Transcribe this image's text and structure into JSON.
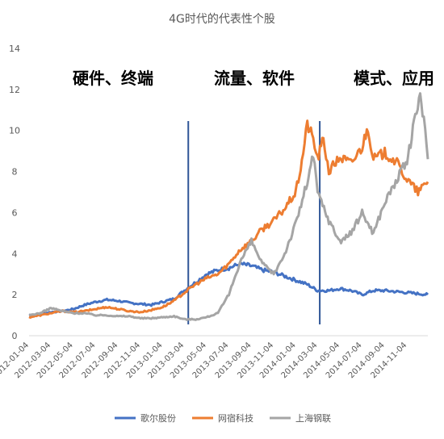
{
  "chart_data": {
    "type": "line",
    "title": "4G时代的代表性个股",
    "ylim": [
      0,
      14
    ],
    "yticks": [
      0,
      2,
      4,
      6,
      8,
      10,
      12,
      14
    ],
    "xlim": [
      "2012-01-04",
      "2014-12-31"
    ],
    "x_tick_labels": [
      "2012-01-04",
      "2012-03-04",
      "2012-05-04",
      "2012-07-04",
      "2012-09-04",
      "2012-11-04",
      "2013-01-04",
      "2013-03-04",
      "2013-05-04",
      "2013-07-04",
      "2013-09-04",
      "2013-11-04",
      "2014-01-04",
      "2014-03-04",
      "2014-05-04",
      "2014-07-04",
      "2014-09-04",
      "2014-11-04"
    ],
    "grid": false,
    "legend_position": "bottom",
    "phase_labels": [
      "硬件、终端",
      "流量、软件",
      "模式、应用"
    ],
    "phase_dividers": [
      "2013-03-15",
      "2014-03-10"
    ],
    "series": [
      {
        "name": "歌尔股份",
        "color": "#4472C4",
        "points": [
          [
            "2012-01-04",
            1.0
          ],
          [
            "2012-02-04",
            1.05
          ],
          [
            "2012-03-04",
            1.15
          ],
          [
            "2012-04-04",
            1.2
          ],
          [
            "2012-05-04",
            1.3
          ],
          [
            "2012-06-04",
            1.5
          ],
          [
            "2012-07-04",
            1.65
          ],
          [
            "2012-08-04",
            1.75
          ],
          [
            "2012-09-04",
            1.7
          ],
          [
            "2012-10-04",
            1.6
          ],
          [
            "2012-11-04",
            1.55
          ],
          [
            "2012-12-04",
            1.5
          ],
          [
            "2013-01-04",
            1.65
          ],
          [
            "2013-02-04",
            1.8
          ],
          [
            "2013-03-04",
            2.2
          ],
          [
            "2013-04-04",
            2.6
          ],
          [
            "2013-05-04",
            3.0
          ],
          [
            "2013-06-04",
            3.2
          ],
          [
            "2013-07-04",
            3.3
          ],
          [
            "2013-08-04",
            3.5
          ],
          [
            "2013-09-04",
            3.4
          ],
          [
            "2013-10-04",
            3.2
          ],
          [
            "2013-11-04",
            3.1
          ],
          [
            "2013-12-04",
            2.9
          ],
          [
            "2014-01-04",
            2.7
          ],
          [
            "2014-02-04",
            2.5
          ],
          [
            "2014-03-04",
            2.2
          ],
          [
            "2014-04-04",
            2.2
          ],
          [
            "2014-05-04",
            2.3
          ],
          [
            "2014-06-04",
            2.2
          ],
          [
            "2014-07-04",
            2.0
          ],
          [
            "2014-08-04",
            2.2
          ],
          [
            "2014-09-04",
            2.2
          ],
          [
            "2014-10-04",
            2.15
          ],
          [
            "2014-11-04",
            2.1
          ],
          [
            "2014-12-31",
            2.0
          ]
        ]
      },
      {
        "name": "网宿科技",
        "color": "#ED7D31",
        "points": [
          [
            "2012-01-04",
            0.9
          ],
          [
            "2012-02-04",
            1.0
          ],
          [
            "2012-03-04",
            1.1
          ],
          [
            "2012-04-04",
            1.2
          ],
          [
            "2012-05-04",
            1.15
          ],
          [
            "2012-06-04",
            1.2
          ],
          [
            "2012-07-04",
            1.3
          ],
          [
            "2012-08-04",
            1.4
          ],
          [
            "2012-09-04",
            1.3
          ],
          [
            "2012-10-04",
            1.2
          ],
          [
            "2012-11-04",
            1.15
          ],
          [
            "2012-12-04",
            1.25
          ],
          [
            "2013-01-04",
            1.4
          ],
          [
            "2013-02-04",
            1.7
          ],
          [
            "2013-03-04",
            2.1
          ],
          [
            "2013-04-04",
            2.5
          ],
          [
            "2013-05-04",
            2.8
          ],
          [
            "2013-06-04",
            3.0
          ],
          [
            "2013-07-04",
            3.5
          ],
          [
            "2013-08-04",
            4.2
          ],
          [
            "2013-09-04",
            4.6
          ],
          [
            "2013-10-04",
            5.2
          ],
          [
            "2013-11-04",
            5.6
          ],
          [
            "2013-12-04",
            6.2
          ],
          [
            "2014-01-04",
            7.0
          ],
          [
            "2014-01-20",
            8.5
          ],
          [
            "2014-02-04",
            10.3
          ],
          [
            "2014-02-20",
            9.6
          ],
          [
            "2014-03-04",
            8.6
          ],
          [
            "2014-03-20",
            9.6
          ],
          [
            "2014-04-04",
            8.0
          ],
          [
            "2014-05-04",
            8.7
          ],
          [
            "2014-06-04",
            8.4
          ],
          [
            "2014-07-04",
            9.2
          ],
          [
            "2014-07-20",
            10.2
          ],
          [
            "2014-08-04",
            8.6
          ],
          [
            "2014-09-04",
            8.9
          ],
          [
            "2014-10-04",
            8.5
          ],
          [
            "2014-11-04",
            7.6
          ],
          [
            "2014-12-04",
            7.0
          ],
          [
            "2014-12-31",
            7.5
          ]
        ]
      },
      {
        "name": "上海钢联",
        "color": "#A5A5A5",
        "points": [
          [
            "2012-01-04",
            1.0
          ],
          [
            "2012-02-04",
            1.1
          ],
          [
            "2012-03-04",
            1.35
          ],
          [
            "2012-04-04",
            1.2
          ],
          [
            "2012-05-04",
            1.1
          ],
          [
            "2012-06-04",
            1.1
          ],
          [
            "2012-07-04",
            1.0
          ],
          [
            "2012-08-04",
            1.0
          ],
          [
            "2012-09-04",
            0.95
          ],
          [
            "2012-10-04",
            0.95
          ],
          [
            "2012-11-04",
            0.85
          ],
          [
            "2012-12-04",
            0.85
          ],
          [
            "2013-01-04",
            0.9
          ],
          [
            "2013-02-04",
            0.95
          ],
          [
            "2013-03-04",
            0.8
          ],
          [
            "2013-04-04",
            0.8
          ],
          [
            "2013-05-04",
            0.9
          ],
          [
            "2013-06-04",
            1.1
          ],
          [
            "2013-07-04",
            2.0
          ],
          [
            "2013-08-04",
            3.6
          ],
          [
            "2013-09-04",
            4.6
          ],
          [
            "2013-10-04",
            3.5
          ],
          [
            "2013-11-04",
            3.0
          ],
          [
            "2013-12-04",
            4.0
          ],
          [
            "2014-01-04",
            5.5
          ],
          [
            "2014-02-04",
            7.5
          ],
          [
            "2014-02-20",
            8.8
          ],
          [
            "2014-03-04",
            7.0
          ],
          [
            "2014-04-04",
            5.6
          ],
          [
            "2014-05-04",
            4.6
          ],
          [
            "2014-06-04",
            5.0
          ],
          [
            "2014-07-04",
            6.0
          ],
          [
            "2014-08-04",
            5.0
          ],
          [
            "2014-09-04",
            6.5
          ],
          [
            "2014-10-04",
            7.5
          ],
          [
            "2014-11-04",
            8.5
          ],
          [
            "2014-11-20",
            10.0
          ],
          [
            "2014-12-10",
            11.8
          ],
          [
            "2014-12-20",
            10.5
          ],
          [
            "2014-12-31",
            8.6
          ]
        ]
      }
    ]
  }
}
